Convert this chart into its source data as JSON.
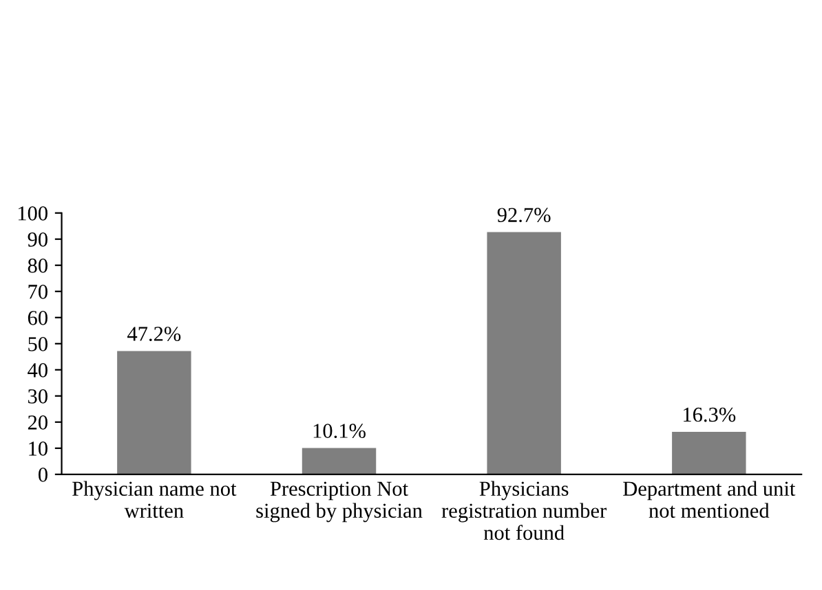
{
  "chart_data": {
    "type": "bar",
    "categories": [
      "Physician name not\nwritten",
      "Prescription Not\nsigned by physician",
      "Physicians\nregistration number\nnot found",
      "Department and unit\nnot mentioned"
    ],
    "values": [
      47.2,
      10.1,
      92.7,
      16.3
    ],
    "value_labels": [
      "47.2%",
      "10.1%",
      "92.7%",
      "16.3%"
    ],
    "color": "#7f7f7f",
    "ylim": [
      0,
      100
    ],
    "yticks": [
      0,
      10,
      20,
      30,
      40,
      50,
      60,
      70,
      80,
      90,
      100
    ],
    "grid": false,
    "legend": false
  }
}
